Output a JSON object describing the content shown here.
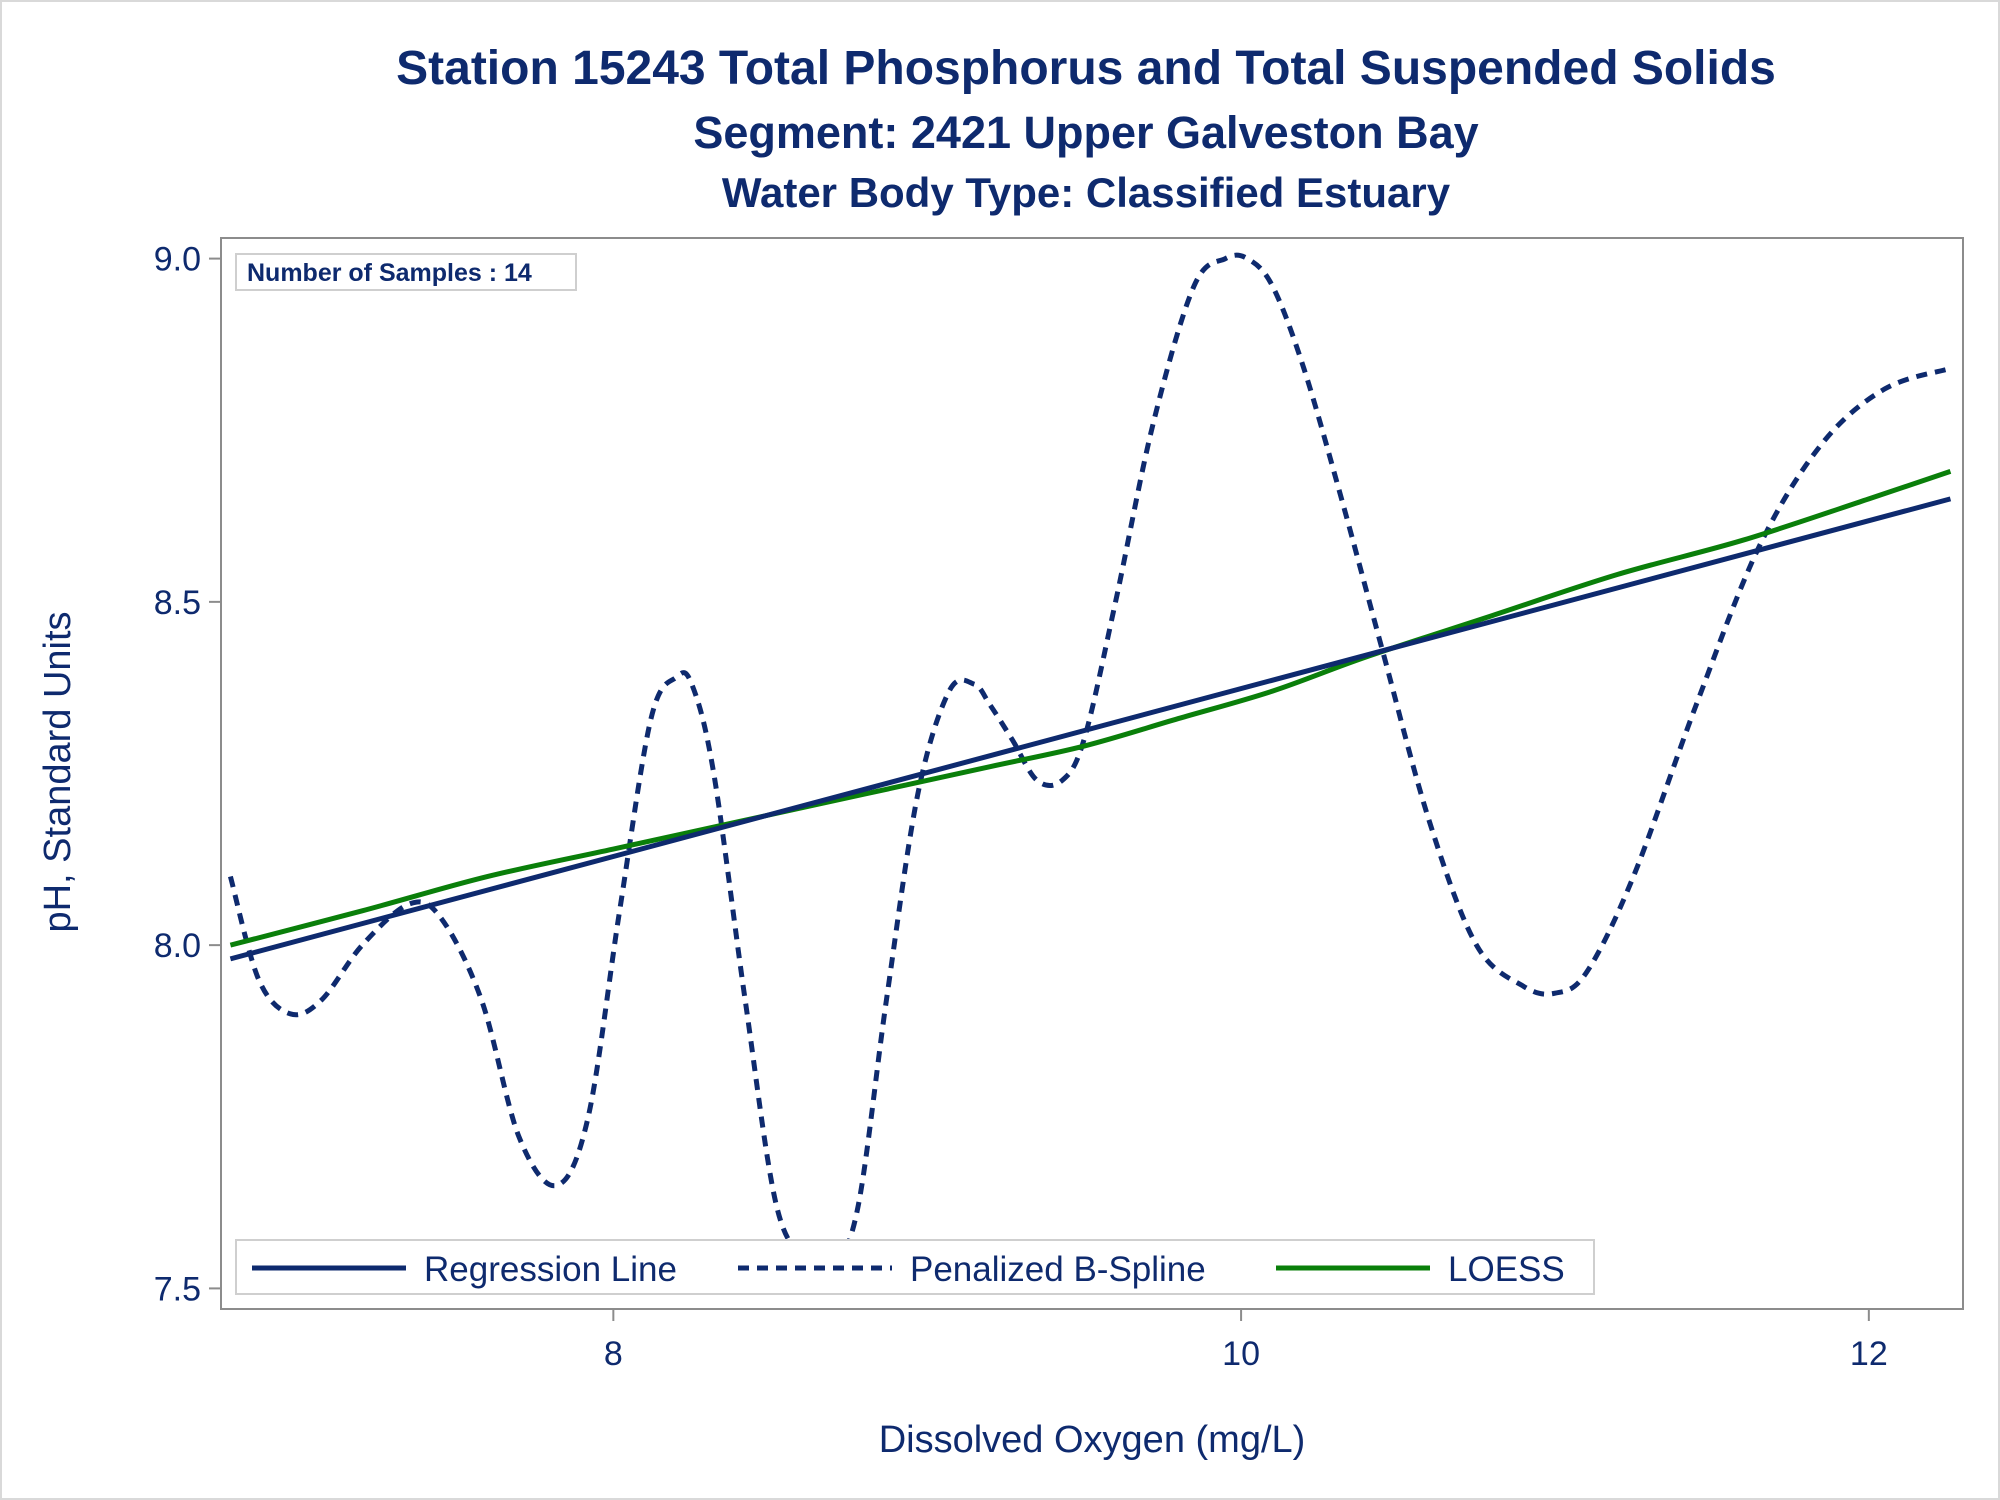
{
  "titles": {
    "line1": "Station 15243  Total Phosphorus and Total Suspended Solids",
    "line2": "Segment: 2421  Upper Galveston Bay",
    "line3": "Water Body Type: Classified Estuary"
  },
  "inset": {
    "text": "Number of Samples : 14"
  },
  "colors": {
    "text": "#0e2a6e",
    "regression": "#0e2a6e",
    "spline": "#0e2a6e",
    "loess": "#0a7f0a",
    "axis": "#8c8c8c"
  },
  "chart_data": {
    "type": "line",
    "xlabel": "Dissolved Oxygen (mg/L)",
    "ylabel": "pH, Standard Units",
    "xlim": [
      6.75,
      12.3
    ],
    "ylim": [
      7.47,
      9.03
    ],
    "xticks": [
      8,
      10,
      12
    ],
    "xtick_labels": [
      "8",
      "10",
      "12"
    ],
    "yticks": [
      7.5,
      8.0,
      8.5,
      9.0
    ],
    "ytick_labels": [
      "7.5",
      "8.0",
      "8.5",
      "9.0"
    ],
    "legend_position": "bottom-left",
    "series": [
      {
        "name": "Regression Line",
        "style": "solid",
        "x": [
          6.78,
          12.26
        ],
        "y": [
          7.98,
          8.65
        ]
      },
      {
        "name": "Penalized B-Spline",
        "style": "dashed",
        "x": [
          6.78,
          6.87,
          6.97,
          7.07,
          7.2,
          7.35,
          7.45,
          7.58,
          7.7,
          7.82,
          7.92,
          8.02,
          8.12,
          8.2,
          8.25,
          8.32,
          8.42,
          8.52,
          8.62,
          8.7,
          8.78,
          8.87,
          8.97,
          9.07,
          9.15,
          9.2,
          9.27,
          9.35,
          9.43,
          9.5,
          9.6,
          9.72,
          9.85,
          9.95,
          10.02,
          10.1,
          10.2,
          10.32,
          10.45,
          10.6,
          10.75,
          10.9,
          11.0,
          11.1,
          11.25,
          11.45,
          11.65,
          11.85,
          12.05,
          12.26
        ],
        "y": [
          8.1,
          7.95,
          7.9,
          7.92,
          8.0,
          8.06,
          8.04,
          7.92,
          7.72,
          7.65,
          7.75,
          8.05,
          8.33,
          8.39,
          8.38,
          8.25,
          7.92,
          7.62,
          7.54,
          7.53,
          7.62,
          7.92,
          8.22,
          8.37,
          8.38,
          8.35,
          8.3,
          8.24,
          8.24,
          8.3,
          8.5,
          8.76,
          8.96,
          9.0,
          9.0,
          8.96,
          8.84,
          8.65,
          8.43,
          8.18,
          8.0,
          7.94,
          7.93,
          7.96,
          8.1,
          8.35,
          8.58,
          8.73,
          8.81,
          8.84
        ]
      },
      {
        "name": "LOESS",
        "style": "solid",
        "x": [
          6.78,
          7.2,
          7.6,
          8.0,
          8.4,
          8.8,
          9.2,
          9.5,
          9.8,
          10.1,
          10.4,
          10.8,
          11.2,
          11.6,
          12.0,
          12.26
        ],
        "y": [
          8.0,
          8.05,
          8.1,
          8.14,
          8.18,
          8.22,
          8.26,
          8.29,
          8.33,
          8.37,
          8.42,
          8.48,
          8.54,
          8.59,
          8.65,
          8.69
        ]
      }
    ]
  }
}
